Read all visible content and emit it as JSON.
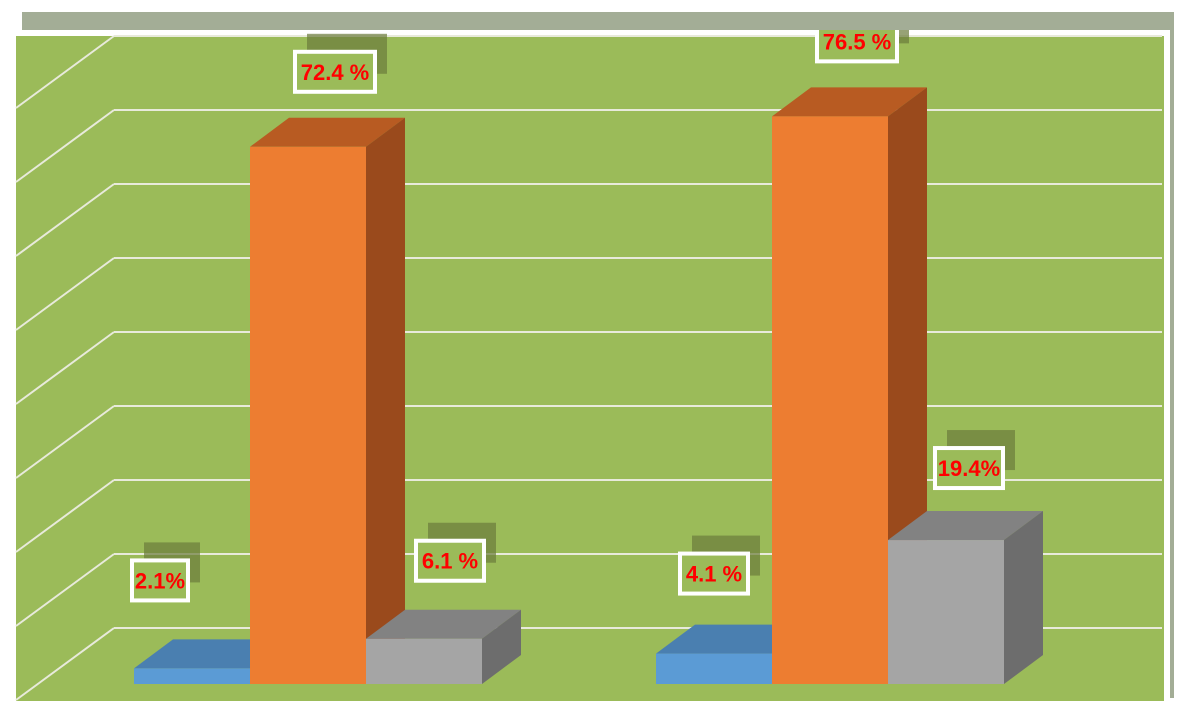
{
  "colors": {
    "plot_bg": "#9bbb59",
    "gridline": "#e8eadb",
    "label_text": "#ff0000",
    "label_box": "#ffffff",
    "label_shadow": "#6b7a3c",
    "series": [
      {
        "front": "#5b9bd5",
        "top": "#4a7fb0",
        "side": "#41719c"
      },
      {
        "front": "#ed7d31",
        "top": "#b85b22",
        "side": "#9a4a1c"
      },
      {
        "front": "#a5a5a5",
        "top": "#828282",
        "side": "#6d6d6d"
      }
    ]
  },
  "chart_data": {
    "type": "bar",
    "style": "3d-clustered-column",
    "title": "",
    "xlabel": "",
    "ylabel": "",
    "grid": true,
    "legend": "none",
    "categories": [
      "",
      ""
    ],
    "series": [
      {
        "values": [
          2.1,
          4.1
        ],
        "labels": [
          "2.1%",
          "4.1 %"
        ]
      },
      {
        "values": [
          72.4,
          76.5
        ],
        "labels": [
          "72.4 %",
          "76.5 %"
        ]
      },
      {
        "values": [
          6.1,
          19.4
        ],
        "labels": [
          "6.1 %",
          "19.4%"
        ]
      }
    ]
  }
}
